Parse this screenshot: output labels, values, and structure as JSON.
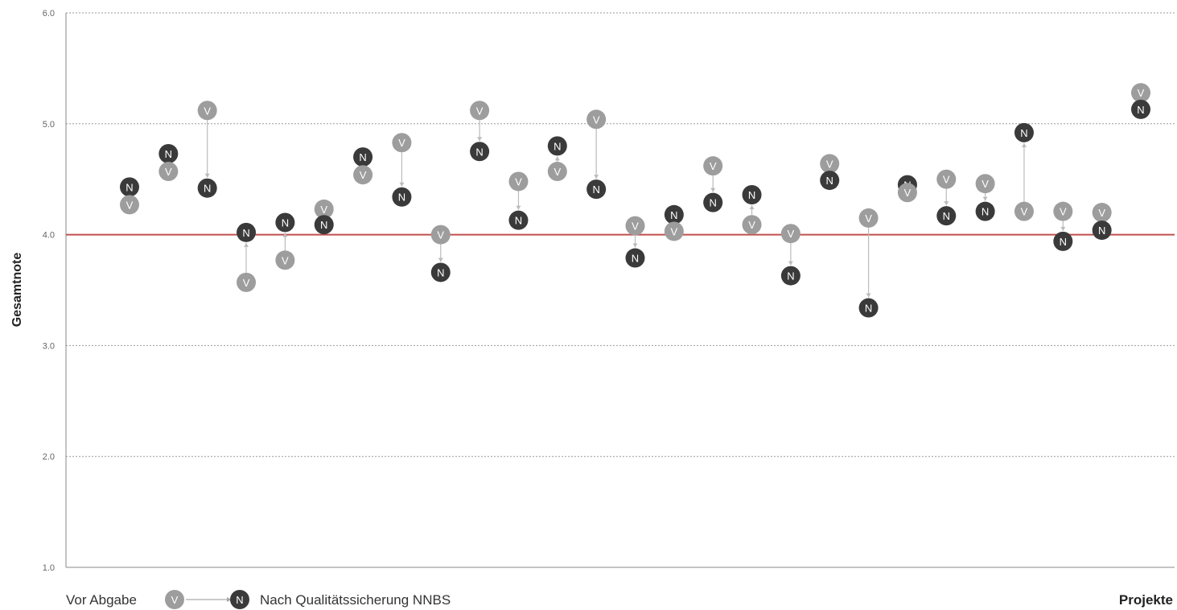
{
  "chart_data": {
    "type": "scatter",
    "xlabel": "Projekte",
    "ylabel": "Gesamtnote",
    "ylim": [
      1.0,
      6.0
    ],
    "yticks": [
      "1.0",
      "2.0",
      "3.0",
      "4.0",
      "5.0",
      "6.0"
    ],
    "grid": true,
    "threshold": 4.0,
    "series": [
      {
        "name": "Vor Abgabe",
        "marker": "V",
        "color": "#9d9d9d",
        "values": [
          4.27,
          4.57,
          5.12,
          3.57,
          3.77,
          4.23,
          4.54,
          4.83,
          4.0,
          5.12,
          4.48,
          4.57,
          5.04,
          4.08,
          4.03,
          4.62,
          4.09,
          4.01,
          4.64,
          4.15,
          4.38,
          4.5,
          4.46,
          4.21,
          4.21,
          4.2,
          5.28
        ]
      },
      {
        "name": "Nach Qualitätssicherung NNBS",
        "marker": "N",
        "color": "#3a3a3a",
        "values": [
          4.43,
          4.73,
          4.42,
          4.02,
          4.11,
          4.09,
          4.7,
          4.34,
          3.66,
          4.75,
          4.13,
          4.8,
          4.41,
          3.79,
          4.18,
          4.29,
          4.36,
          3.63,
          4.49,
          3.34,
          4.45,
          4.17,
          4.21,
          4.92,
          3.94,
          4.04,
          5.13
        ]
      }
    ],
    "legend": {
      "position": "bottom-left",
      "before_label": "Vor Abgabe",
      "after_label": "Nach Qualitätssicherung NNBS",
      "before_marker": "V",
      "after_marker": "N"
    }
  },
  "colors": {
    "threshold": "#c0504d",
    "grid": "#9a9a9a",
    "axis": "#888888"
  }
}
